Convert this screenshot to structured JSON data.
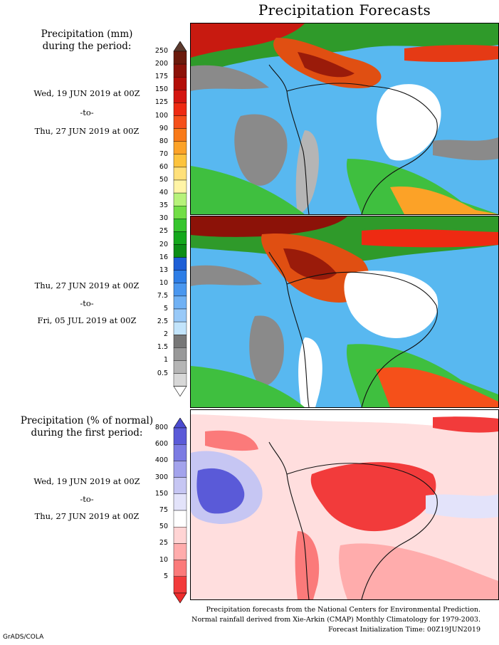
{
  "title": "Precipitation Forecasts",
  "left_panel": {
    "heading_amount_line1": "Precipitation (mm)",
    "heading_amount_line2": "during the period:",
    "period1": {
      "start": "Wed, 19 JUN 2019 at 00Z",
      "sep": "-to-",
      "end": "Thu, 27 JUN 2019 at 00Z"
    },
    "period2": {
      "start": "Thu, 27 JUN 2019 at 00Z",
      "sep": "-to-",
      "end": "Fri, 05 JUL 2019 at 00Z"
    },
    "heading_pct_line1": "Precipitation (% of normal)",
    "heading_pct_line2": "during the first period:",
    "period3": {
      "start": "Wed, 19 JUN 2019 at 00Z",
      "sep": "-to-",
      "end": "Thu, 27 JUN 2019 at 00Z"
    }
  },
  "colorbar_mm": {
    "labels": [
      "250",
      "200",
      "175",
      "150",
      "125",
      "100",
      "90",
      "80",
      "70",
      "60",
      "50",
      "40",
      "35",
      "30",
      "25",
      "20",
      "16",
      "13",
      "10",
      "7.5",
      "5",
      "2.5",
      "2",
      "1.5",
      "1",
      "0.5"
    ],
    "colors": [
      "#6b1a0c",
      "#8c1208",
      "#b30f08",
      "#d41510",
      "#ee2a12",
      "#f5501a",
      "#f97a18",
      "#fca227",
      "#fdc33c",
      "#ffe07a",
      "#fff4a6",
      "#b7f27a",
      "#72de46",
      "#36c52e",
      "#14a81c",
      "#0d8e16",
      "#1e5fd6",
      "#2e7ee6",
      "#4a97ef",
      "#70b1f4",
      "#98c9f8",
      "#c2e4fb",
      "#777777",
      "#999999",
      "#b5b5b5",
      "#d8d8d8"
    ],
    "arrow_top": "#5c3a2e",
    "arrow_bottom": "#ffffff"
  },
  "colorbar_pct": {
    "labels": [
      "800",
      "600",
      "400",
      "300",
      "150",
      "75",
      "50",
      "25",
      "10",
      "5"
    ],
    "colors": [
      "#5a5ad8",
      "#7b7be3",
      "#a3a3ec",
      "#c6c6f3",
      "#e3e3fa",
      "#ffffff",
      "#ffd4d4",
      "#ffacac",
      "#fb7a7a",
      "#f23b3b"
    ],
    "arrow_top": "#4b4bd0",
    "arrow_bottom": "#ee2c2c"
  },
  "footer": {
    "line1": "Precipitation forecasts from the National Centers for Environmental Prediction.",
    "line2": "Normal rainfall derived from Xie-Arkin (CMAP) Monthly Climatology for 1979-2003.",
    "line3": "Forecast Initialization Time: 00Z19JUN2019"
  },
  "credit": "GrADS/COLA"
}
